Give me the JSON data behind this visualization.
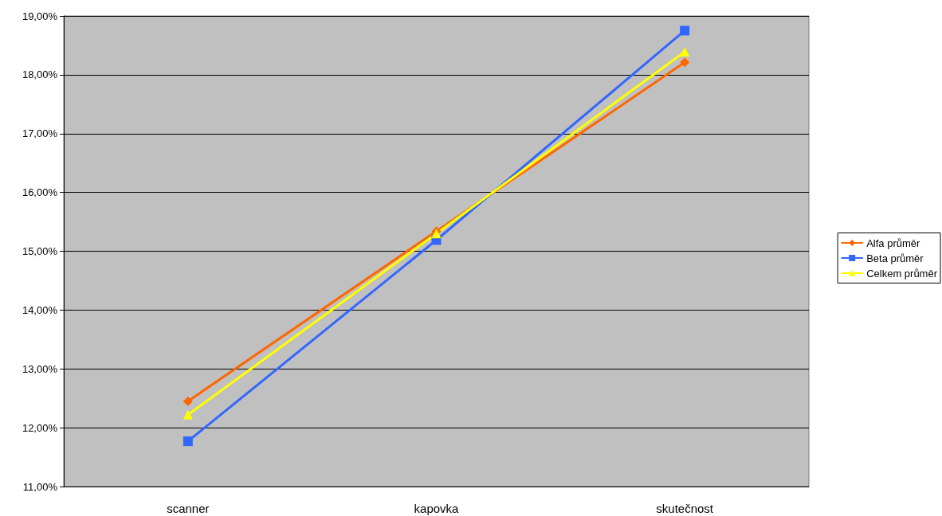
{
  "chart_data": {
    "type": "line",
    "categories": [
      "scanner",
      "kapovka",
      "skutečnost"
    ],
    "series": [
      {
        "name": "Alfa průměr",
        "color": "#ff6600",
        "marker": "diamond",
        "values": [
          12.45,
          15.34,
          18.21
        ]
      },
      {
        "name": "Beta průměr",
        "color": "#3366ff",
        "marker": "square",
        "values": [
          11.77,
          15.19,
          18.75
        ]
      },
      {
        "name": "Celkem průměr",
        "color": "#ffff00",
        "marker": "triangle",
        "values": [
          12.22,
          15.3,
          18.39
        ]
      }
    ],
    "ylim": [
      11,
      19
    ],
    "yticks": [
      {
        "value": 11,
        "label": "11,00%"
      },
      {
        "value": 12,
        "label": "12,00%"
      },
      {
        "value": 13,
        "label": "13,00%"
      },
      {
        "value": 14,
        "label": "14,00%"
      },
      {
        "value": 15,
        "label": "15,00%"
      },
      {
        "value": 16,
        "label": "16,00%"
      },
      {
        "value": 17,
        "label": "17,00%"
      },
      {
        "value": 18,
        "label": "18,00%"
      },
      {
        "value": 19,
        "label": "19,00%"
      }
    ],
    "grid": "y",
    "legend": "right",
    "line_style": "solid"
  }
}
